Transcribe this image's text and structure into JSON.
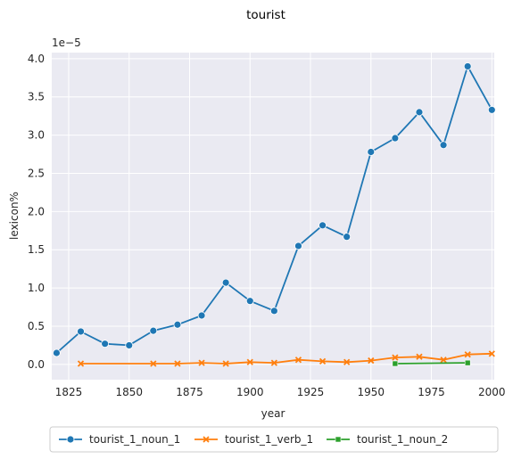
{
  "chart_data": {
    "type": "line",
    "title": "tourist",
    "xlabel": "year",
    "ylabel": "lexicon%",
    "y_offset_label": "1e−5",
    "xlim": [
      1818,
      2001
    ],
    "ylim": [
      -0.2,
      4.08
    ],
    "x_ticks": [
      1825,
      1850,
      1875,
      1900,
      1925,
      1950,
      1975,
      2000
    ],
    "y_ticks": [
      0.0,
      0.5,
      1.0,
      1.5,
      2.0,
      2.5,
      3.0,
      3.5,
      4.0
    ],
    "y_tick_labels": [
      "0.0",
      "0.5",
      "1.0",
      "1.5",
      "2.0",
      "2.5",
      "3.0",
      "3.5",
      "4.0"
    ],
    "grid": true,
    "legend_position": "bottom-center",
    "series": [
      {
        "name": "tourist_1_noun_1",
        "color": "#1f77b4",
        "marker": "circle",
        "x": [
          1820,
          1830,
          1840,
          1850,
          1860,
          1870,
          1880,
          1890,
          1900,
          1910,
          1920,
          1930,
          1940,
          1950,
          1960,
          1970,
          1980,
          1990,
          2000
        ],
        "y": [
          0.15,
          0.43,
          0.27,
          0.25,
          0.44,
          0.52,
          0.64,
          1.07,
          0.83,
          0.7,
          1.55,
          1.82,
          1.67,
          2.78,
          2.96,
          3.3,
          2.87,
          3.9,
          3.33
        ]
      },
      {
        "name": "tourist_1_verb_1",
        "color": "#ff7f0e",
        "marker": "x",
        "x": [
          1830,
          1860,
          1870,
          1880,
          1890,
          1900,
          1910,
          1920,
          1930,
          1940,
          1950,
          1960,
          1970,
          1980,
          1990,
          2000
        ],
        "y": [
          0.01,
          0.01,
          0.01,
          0.02,
          0.01,
          0.03,
          0.02,
          0.06,
          0.04,
          0.03,
          0.05,
          0.09,
          0.1,
          0.06,
          0.13,
          0.14
        ]
      },
      {
        "name": "tourist_1_noun_2",
        "color": "#2ca02c",
        "marker": "square",
        "x": [
          1960,
          1990
        ],
        "y": [
          0.01,
          0.02
        ]
      }
    ]
  }
}
